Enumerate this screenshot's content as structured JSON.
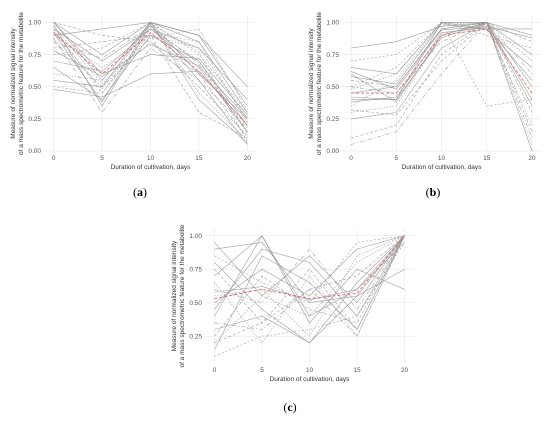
{
  "colors": {
    "grid": "#e6e6e6",
    "series": "#8f8f8f",
    "median": "#e06a6a"
  },
  "chart_data": [
    {
      "type": "line",
      "caption": "(a)",
      "xlabel": "Duration of cultivation, days",
      "ylabel_lines": [
        "Measure of normalized signal intensity",
        "of a mass spectrometric feature for the metabolite"
      ],
      "x": [
        0,
        5,
        10,
        15,
        20
      ],
      "xlim": [
        -1,
        21
      ],
      "ylim": [
        0,
        1.05
      ],
      "xticks": [
        "0",
        "5",
        "10",
        "15",
        "20"
      ],
      "yticks": [
        "0.00",
        "0.25",
        "0.50",
        "0.75",
        "1.00"
      ],
      "grid": true,
      "median": [
        0.92,
        0.6,
        0.92,
        0.62,
        0.2
      ],
      "series": [
        [
          1.0,
          0.55,
          1.0,
          0.85,
          0.3
        ],
        [
          0.95,
          0.45,
          0.95,
          0.7,
          0.15
        ],
        [
          0.9,
          0.65,
          0.9,
          0.8,
          0.25
        ],
        [
          1.0,
          0.75,
          1.0,
          0.9,
          0.35
        ],
        [
          0.85,
          0.5,
          0.85,
          0.6,
          0.1
        ],
        [
          0.98,
          0.35,
          0.98,
          0.55,
          0.05
        ],
        [
          0.75,
          0.8,
          1.0,
          0.75,
          0.3
        ],
        [
          0.65,
          0.4,
          0.9,
          0.7,
          0.2
        ],
        [
          0.95,
          0.7,
          0.95,
          0.65,
          0.15
        ],
        [
          1.0,
          0.9,
          0.85,
          0.5,
          0.12
        ],
        [
          0.6,
          0.55,
          1.0,
          0.45,
          0.08
        ],
        [
          0.9,
          0.95,
          1.0,
          0.6,
          0.25
        ],
        [
          0.88,
          0.3,
          0.8,
          0.55,
          0.18
        ],
        [
          0.7,
          0.62,
          0.95,
          0.8,
          0.4
        ],
        [
          0.5,
          0.45,
          0.92,
          0.85,
          0.22
        ],
        [
          0.92,
          0.38,
          1.0,
          0.4,
          0.06
        ],
        [
          1.0,
          0.6,
          0.75,
          0.72,
          0.28
        ],
        [
          0.8,
          0.85,
          0.9,
          0.3,
          0.1
        ],
        [
          0.97,
          0.52,
          0.88,
          0.95,
          0.32
        ],
        [
          0.55,
          0.5,
          1.0,
          0.9,
          0.5
        ],
        [
          0.85,
          0.72,
          0.97,
          0.68,
          0.14
        ],
        [
          0.48,
          0.42,
          0.6,
          0.62,
          0.2
        ],
        [
          0.93,
          0.48,
          0.99,
          0.77,
          0.07
        ],
        [
          0.78,
          0.58,
          0.83,
          0.66,
          0.26
        ]
      ]
    },
    {
      "type": "line",
      "caption": "(b)",
      "xlabel": "Duration of cultivation, days",
      "ylabel_lines": [
        "Measure of normalized signal intensity",
        "of a mass spectrometric feature for the metabolite"
      ],
      "x": [
        0,
        5,
        10,
        15,
        20
      ],
      "xlim": [
        -1,
        21
      ],
      "ylim": [
        0,
        1.05
      ],
      "xticks": [
        "0",
        "5",
        "10",
        "15",
        "20"
      ],
      "yticks": [
        "0.00",
        "0.25",
        "0.50",
        "0.75",
        "1.00"
      ],
      "grid": true,
      "median": [
        0.45,
        0.45,
        0.9,
        0.95,
        0.45
      ],
      "series": [
        [
          0.4,
          0.4,
          1.0,
          1.0,
          0.9
        ],
        [
          0.55,
          0.5,
          0.95,
          1.0,
          0.85
        ],
        [
          0.3,
          0.35,
          0.9,
          1.0,
          0.7
        ],
        [
          0.65,
          0.6,
          1.0,
          0.95,
          0.95
        ],
        [
          0.5,
          0.45,
          0.85,
          1.0,
          0.6
        ],
        [
          0.25,
          0.3,
          0.8,
          1.0,
          0.5
        ],
        [
          0.7,
          0.75,
          1.0,
          0.9,
          0.8
        ],
        [
          0.45,
          0.5,
          0.95,
          1.0,
          0.4
        ],
        [
          0.6,
          0.38,
          0.9,
          1.0,
          0.35
        ],
        [
          0.1,
          0.2,
          0.75,
          1.0,
          0.3
        ],
        [
          0.35,
          0.55,
          1.0,
          0.98,
          0.2
        ],
        [
          0.8,
          0.85,
          0.97,
          1.0,
          0.0
        ],
        [
          0.05,
          0.15,
          0.6,
          1.0,
          0.1
        ],
        [
          0.38,
          0.42,
          0.92,
          0.96,
          0.55
        ],
        [
          0.5,
          0.65,
          1.0,
          0.35,
          0.4
        ],
        [
          0.42,
          0.4,
          0.88,
          1.0,
          0.75
        ],
        [
          0.58,
          0.52,
          0.99,
          0.94,
          0.65
        ],
        [
          0.32,
          0.28,
          0.7,
          1.0,
          0.15
        ],
        [
          0.48,
          0.6,
          1.0,
          1.0,
          0.05
        ],
        [
          0.62,
          0.48,
          0.94,
          0.97,
          0.88
        ]
      ]
    },
    {
      "type": "line",
      "caption": "(c)",
      "xlabel": "Duration of cultivation, days",
      "ylabel_lines": [
        "Measure of normalized signal intensity",
        "of a mass spectrometric feature for the metabolite"
      ],
      "x": [
        0,
        5,
        10,
        15,
        20
      ],
      "xlim": [
        -1,
        21
      ],
      "ylim": [
        0.05,
        1.05
      ],
      "xticks": [
        "0",
        "5",
        "10",
        "15",
        "20"
      ],
      "yticks": [
        "0.25",
        "0.50",
        "0.75",
        "1.00"
      ],
      "grid": true,
      "median": [
        0.53,
        0.6,
        0.53,
        0.57,
        1.0
      ],
      "series": [
        [
          0.9,
          0.95,
          0.5,
          0.55,
          1.0
        ],
        [
          0.2,
          0.35,
          0.75,
          0.3,
          1.0
        ],
        [
          0.55,
          0.6,
          0.25,
          0.85,
          1.0
        ],
        [
          0.7,
          1.0,
          0.4,
          0.6,
          1.0
        ],
        [
          0.35,
          0.3,
          0.6,
          0.25,
          1.0
        ],
        [
          0.95,
          0.55,
          0.85,
          0.5,
          1.0
        ],
        [
          0.1,
          0.25,
          0.3,
          0.4,
          0.95
        ],
        [
          0.5,
          0.75,
          0.55,
          0.9,
          1.0
        ],
        [
          0.8,
          0.45,
          0.2,
          0.65,
          1.0
        ],
        [
          0.25,
          0.7,
          0.45,
          0.35,
          1.0
        ],
        [
          0.65,
          0.2,
          0.7,
          0.25,
          1.0
        ],
        [
          0.4,
          1.0,
          0.35,
          0.75,
          0.6
        ],
        [
          0.6,
          0.5,
          0.9,
          0.45,
          1.0
        ],
        [
          0.15,
          0.85,
          0.65,
          0.3,
          1.0
        ],
        [
          0.85,
          0.65,
          0.5,
          0.95,
          1.0
        ],
        [
          0.3,
          0.4,
          0.2,
          0.55,
          0.75
        ],
        [
          0.45,
          0.9,
          0.8,
          0.4,
          1.0
        ],
        [
          0.75,
          0.35,
          0.6,
          0.7,
          1.0
        ],
        [
          0.2,
          0.55,
          0.4,
          0.8,
          1.0
        ],
        [
          0.58,
          0.62,
          0.52,
          0.6,
          0.95
        ]
      ]
    }
  ]
}
